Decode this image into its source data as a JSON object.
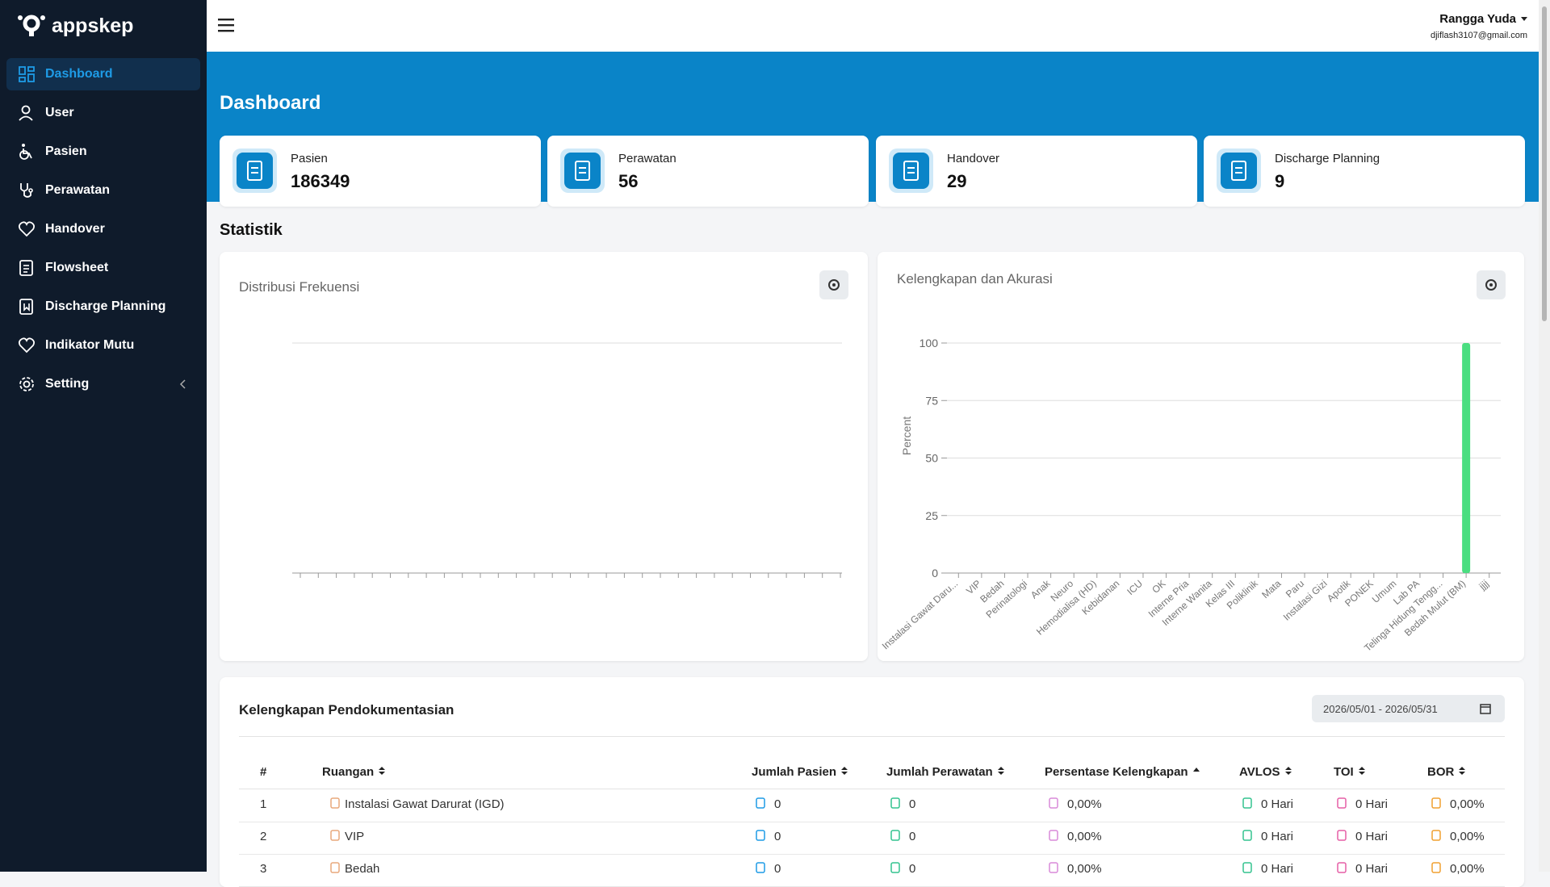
{
  "sidebar": {
    "brand": "appskep",
    "menu": [
      "Dashboard",
      "User",
      "Pasien",
      "Perawatan",
      "Handover",
      "Flowsheet",
      "Discharge Planning",
      "Indikator Mutu",
      "Setting"
    ]
  },
  "header": {
    "user_name": "Rangga Yuda",
    "user_email": "djiflash3107@gmail.com"
  },
  "page_title": "Dashboard",
  "cards": [
    {
      "label": "Pasien",
      "value": 186349
    },
    {
      "label": "Perawatan",
      "value": 56
    },
    {
      "label": "Handover",
      "value": 29
    },
    {
      "label": "Discharge Planning",
      "value": 9
    }
  ],
  "section_title": "Statistik",
  "distribusi": {
    "title": "Distribusi Frekuensi"
  },
  "chart_data": {
    "type": "bar",
    "title": "Kelengkapan dan Akurasi",
    "y_label": "Percent",
    "categories": [
      "Instalasi Gawat Daru...",
      "VIP",
      "Bedah",
      "Perinatologi",
      "Anak",
      "Neuro",
      "Hemodialisa (HD)",
      "Kebidanan",
      "ICU",
      "OK",
      "Interne Pria",
      "Interne Wanita",
      "Kelas III",
      "Poliklinik",
      "Mata",
      "Paru",
      "Instalasi Gizi",
      "Apotik",
      "PONEK",
      "Umum",
      "Lab PA",
      "Telinga Hidung Tengg...",
      "Bedah Mulut (BM)",
      "jjjj"
    ],
    "values": [
      0,
      0,
      0,
      0,
      0,
      0,
      0,
      0,
      0,
      0,
      0,
      0,
      0,
      0,
      0,
      0,
      0,
      0,
      0,
      0,
      0,
      0,
      100,
      0
    ],
    "color": "#4ade80",
    "ylim": [
      0,
      100
    ],
    "yticks": [
      0,
      25,
      50,
      75,
      100
    ],
    "grid": true
  },
  "table": {
    "title": "Kelengkapan Pendokumentasian",
    "date_range": "2026/05/01 - 2026/05/31",
    "columns": [
      "#",
      "Ruangan",
      "Jumlah Pasien",
      "Jumlah Perawatan",
      "Persentase Kelengkapan",
      "AVLOS",
      "TOI",
      "BOR"
    ],
    "rows": [
      [
        1,
        "Instalasi Gawat Darurat (IGD)",
        0,
        0,
        "0,00%",
        "0 Hari",
        "0 Hari",
        "0,00%"
      ],
      [
        2,
        "VIP",
        0,
        0,
        "0,00%",
        "0 Hari",
        "0 Hari",
        "0,00%"
      ],
      [
        3,
        "Bedah",
        0,
        0,
        "0,00%",
        "0 Hari",
        "0 Hari",
        "0,00%"
      ]
    ]
  }
}
